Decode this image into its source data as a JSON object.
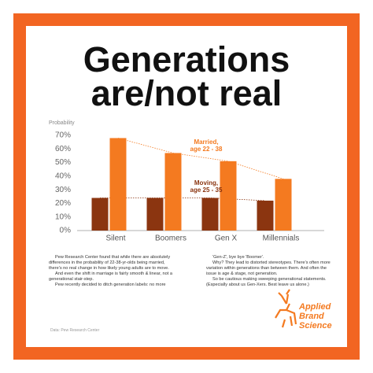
{
  "chart_data": {
    "type": "bar",
    "title": [
      "Generations",
      "are/not real"
    ],
    "ylabel": "Probability",
    "categories": [
      "Silent",
      "Boomers",
      "Gen X",
      "Millennials"
    ],
    "series": [
      {
        "color": "#8b3510",
        "values": [
          24,
          24,
          24,
          22
        ]
      },
      {
        "color": "#f47a20",
        "values": [
          68,
          57,
          51,
          38
        ]
      }
    ],
    "ylim": [
      0,
      70
    ],
    "yticks": [
      {
        "value": 0,
        "label": "0%"
      },
      {
        "value": 10,
        "label": "10%"
      },
      {
        "value": 20,
        "label": "20%"
      },
      {
        "value": 30,
        "label": "30%"
      },
      {
        "value": 40,
        "label": "40%"
      },
      {
        "value": 50,
        "label": "50%"
      },
      {
        "value": 60,
        "label": "60%"
      },
      {
        "value": 70,
        "label": "70%"
      }
    ],
    "grid": false,
    "annotations": [
      {
        "lines": [
          "Married,",
          "age 22 - 38"
        ],
        "color": "#f47a20"
      },
      {
        "lines": [
          "Moving,",
          "age 25 - 35"
        ],
        "color": "#8b3510"
      }
    ]
  },
  "notes": {
    "left": [
      "Pew Research Center found that while there are absolutely differences in the probability of 22-38-yr-olds being married, there's no real change in how likely young adults are to move.",
      "And even the shift in marriage is fairly smooth & linear, not a generational stair-step.",
      "Pew recently decided to ditch generation labels: no more"
    ],
    "right": [
      "'Gen-Z', bye bye 'Boomer'.",
      "Why? They lead to distorted stereotypes. There's often more variation within generations than between them. And often the issue is age & stage, not generation.",
      "So be cautious making sweeping generational statements. (Especially about us Gen-Xers. Best leave us alone.)"
    ]
  },
  "source": "Data: Pew Research Center",
  "logo": [
    "Applied",
    "Brand",
    "Science"
  ]
}
